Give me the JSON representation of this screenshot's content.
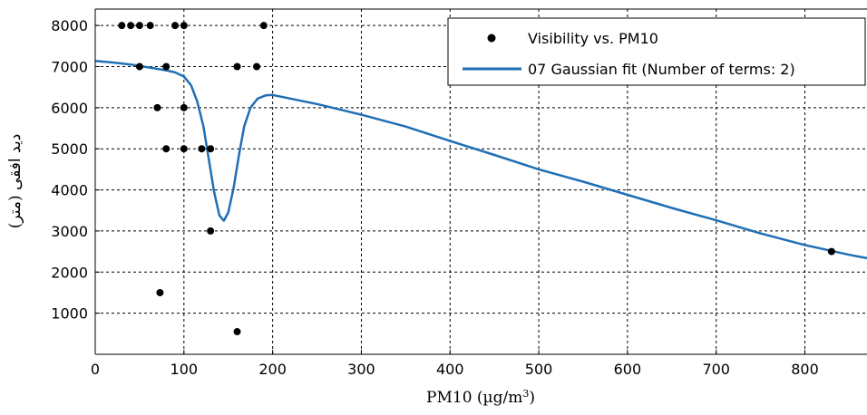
{
  "chart_data": {
    "type": "scatter",
    "xlabel": "PM10 (µg/m³)",
    "ylabel": "دید افقی (متر)",
    "xlim": [
      0,
      870
    ],
    "ylim": [
      0,
      8400
    ],
    "xticks": [
      0,
      100,
      200,
      300,
      400,
      500,
      600,
      700,
      800
    ],
    "yticks": [
      1000,
      2000,
      3000,
      4000,
      5000,
      6000,
      7000,
      8000
    ],
    "grid": true,
    "legend_position": "top-right",
    "colors": {
      "points": "#000000",
      "fit": "#1f6fb5"
    },
    "series": [
      {
        "name": "Visibility vs. PM10",
        "kind": "points",
        "points": [
          [
            30,
            8000
          ],
          [
            40,
            8000
          ],
          [
            50,
            8000
          ],
          [
            62,
            8000
          ],
          [
            90,
            8000
          ],
          [
            100,
            8000
          ],
          [
            190,
            8000
          ],
          [
            50,
            7000
          ],
          [
            80,
            7000
          ],
          [
            160,
            7000
          ],
          [
            182,
            7000
          ],
          [
            70,
            6000
          ],
          [
            100,
            6000
          ],
          [
            80,
            5000
          ],
          [
            100,
            5000
          ],
          [
            120,
            5000
          ],
          [
            130,
            5000
          ],
          [
            130,
            3000
          ],
          [
            73,
            1500
          ],
          [
            160,
            550
          ],
          [
            830,
            2500
          ]
        ]
      },
      {
        "name": "07 Gaussian fit (Number of terms: 2)",
        "kind": "line",
        "points": [
          [
            0,
            7140
          ],
          [
            20,
            7100
          ],
          [
            40,
            7050
          ],
          [
            60,
            6980
          ],
          [
            80,
            6910
          ],
          [
            90,
            6860
          ],
          [
            100,
            6760
          ],
          [
            108,
            6550
          ],
          [
            115,
            6150
          ],
          [
            122,
            5550
          ],
          [
            128,
            4750
          ],
          [
            134,
            3950
          ],
          [
            140,
            3380
          ],
          [
            145,
            3250
          ],
          [
            150,
            3450
          ],
          [
            156,
            4050
          ],
          [
            162,
            4850
          ],
          [
            168,
            5550
          ],
          [
            175,
            6000
          ],
          [
            183,
            6220
          ],
          [
            192,
            6300
          ],
          [
            200,
            6310
          ],
          [
            250,
            6090
          ],
          [
            300,
            5830
          ],
          [
            350,
            5540
          ],
          [
            400,
            5190
          ],
          [
            450,
            4850
          ],
          [
            500,
            4500
          ],
          [
            550,
            4200
          ],
          [
            600,
            3880
          ],
          [
            650,
            3560
          ],
          [
            700,
            3260
          ],
          [
            750,
            2940
          ],
          [
            800,
            2660
          ],
          [
            850,
            2420
          ],
          [
            870,
            2340
          ]
        ]
      }
    ]
  }
}
